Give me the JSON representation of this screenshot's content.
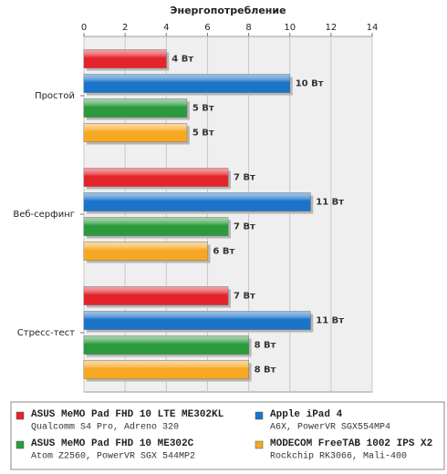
{
  "chart_data": {
    "type": "bar",
    "orientation": "horizontal",
    "title": "Энергопотребление",
    "categories": [
      "Простой",
      "Веб-серфинг",
      "Стресс-тест"
    ],
    "xlim": [
      0,
      14
    ],
    "xticks": [
      0,
      2,
      4,
      6,
      8,
      10,
      12,
      14
    ],
    "grid": true,
    "legend": "bottom",
    "series": [
      {
        "name": "ASUS MeMO Pad FHD 10 LTE ME302KL",
        "description": "Qualcomm S4 Pro, Adreno 320",
        "color": "#e5232a",
        "values": [
          4,
          7,
          7
        ],
        "value_labels": [
          "4 Вт",
          "7 Вт",
          "7 Вт"
        ]
      },
      {
        "name": "Apple iPad 4",
        "description": "A6X, PowerVR SGX554MP4",
        "color": "#1b74c9",
        "values": [
          10,
          11,
          11
        ],
        "value_labels": [
          "10 Вт",
          "11 Вт",
          "11 Вт"
        ]
      },
      {
        "name": "ASUS MeMO Pad FHD 10 ME302C",
        "description": "Atom Z2560, PowerVR SGX 544MP2",
        "color": "#2a9a3c",
        "values": [
          5,
          7,
          8
        ],
        "value_labels": [
          "5 Вт",
          "7 Вт",
          "8 Вт"
        ]
      },
      {
        "name": "MODECOM FreeTAB 1002 IPS X2",
        "description": "Rockchip RK3066, Mali-400",
        "color": "#f7a823",
        "values": [
          5,
          6,
          8
        ],
        "value_labels": [
          "5 Вт",
          "6 Вт",
          "8 Вт"
        ]
      }
    ]
  }
}
